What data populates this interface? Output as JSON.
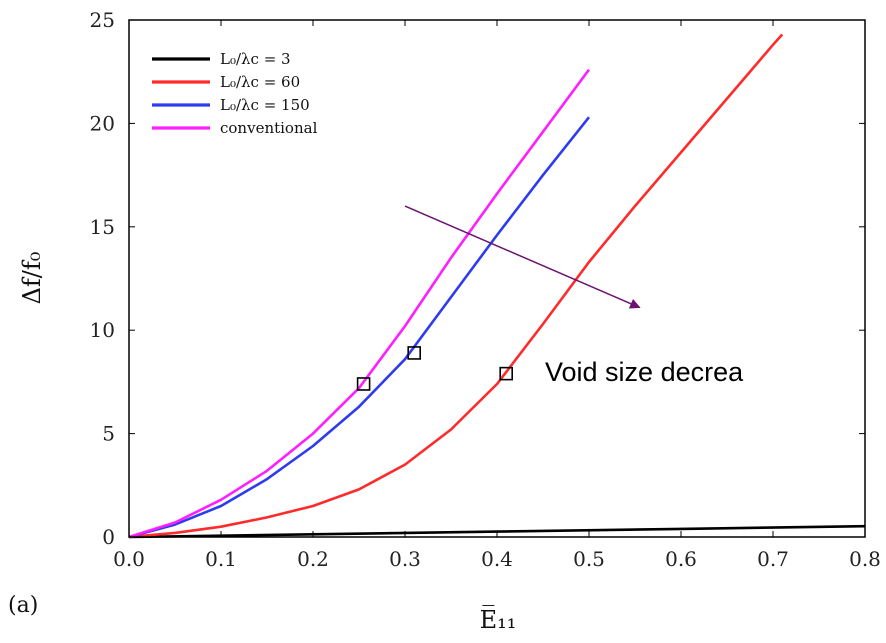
{
  "chart_data": {
    "type": "line",
    "title": "",
    "xlabel": "E̅₁₁",
    "ylabel": "Δf/f₀",
    "xlim": [
      0,
      0.8
    ],
    "ylim": [
      0,
      25
    ],
    "xticks": [
      "0.0",
      "0.1",
      "0.2",
      "0.3",
      "0.4",
      "0.5",
      "0.6",
      "0.7",
      "0.8"
    ],
    "yticks": [
      "0",
      "5",
      "10",
      "15",
      "20",
      "25"
    ],
    "grid": false,
    "legend_position": "top-left",
    "panel_label": "(a)",
    "series": [
      {
        "name": "L₀/λc = 3",
        "color": "#000000",
        "x": [
          0.0,
          0.2,
          0.4,
          0.6,
          0.8
        ],
        "y": [
          0.0,
          0.13,
          0.26,
          0.39,
          0.52
        ]
      },
      {
        "name": "L₀/λc = 60",
        "color": "#ff2a2a",
        "x": [
          0.0,
          0.05,
          0.1,
          0.15,
          0.2,
          0.25,
          0.3,
          0.35,
          0.4,
          0.45,
          0.5,
          0.55,
          0.6,
          0.65,
          0.7,
          0.71
        ],
        "y": [
          0.0,
          0.2,
          0.5,
          0.95,
          1.5,
          2.3,
          3.5,
          5.2,
          7.4,
          10.3,
          13.3,
          16.0,
          18.6,
          21.2,
          23.8,
          24.3
        ],
        "marker": {
          "x": 0.41,
          "y": 7.9
        }
      },
      {
        "name": "L₀/λc = 150",
        "color": "#2e3cf0",
        "x": [
          0.0,
          0.05,
          0.1,
          0.15,
          0.2,
          0.25,
          0.3,
          0.35,
          0.4,
          0.45,
          0.5
        ],
        "y": [
          0.0,
          0.6,
          1.5,
          2.8,
          4.4,
          6.3,
          8.6,
          11.6,
          14.6,
          17.5,
          20.3
        ],
        "marker": {
          "x": 0.31,
          "y": 8.9
        }
      },
      {
        "name": "conventional",
        "color": "#ff1eff",
        "x": [
          0.0,
          0.05,
          0.1,
          0.15,
          0.2,
          0.25,
          0.3,
          0.35,
          0.4,
          0.45,
          0.5
        ],
        "y": [
          0.0,
          0.7,
          1.8,
          3.2,
          5.0,
          7.2,
          10.2,
          13.5,
          16.6,
          19.6,
          22.6
        ],
        "marker": {
          "x": 0.255,
          "y": 7.4
        }
      }
    ],
    "annotations": [
      {
        "text": "Void size decrea",
        "arrow_from": [
          0.3,
          16.0
        ],
        "arrow_to": [
          0.555,
          11.1
        ],
        "arrow_color": "#6b1370"
      }
    ]
  }
}
